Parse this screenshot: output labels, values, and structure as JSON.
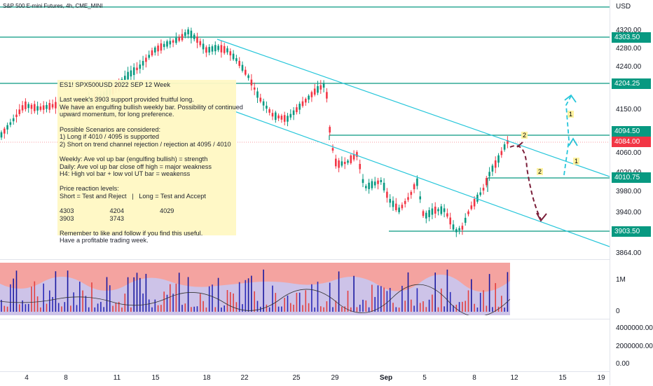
{
  "chart_title": "S&P 500 E-mini Futures, 4h, CME_MINI",
  "currency": "USD",
  "price_labels": [
    "4320.00",
    "4280.00",
    "4240.00",
    "4150.00",
    "4060.00",
    "4020.00",
    "3980.00",
    "3940.00",
    "3864.00"
  ],
  "tags": [
    {
      "text": "4303.50",
      "color": "#089981"
    },
    {
      "text": "4204.25",
      "color": "#089981"
    },
    {
      "text": "4094.50",
      "color": "#089981"
    },
    {
      "text": "4084.00",
      "color": "#f23645"
    },
    {
      "text": "4010.75",
      "color": "#089981"
    },
    {
      "text": "3903.50",
      "color": "#089981"
    }
  ],
  "volume_labels": [
    "1M",
    "0"
  ],
  "indicator_labels": [
    "4000000.00",
    "2000000.00",
    "0.00"
  ],
  "x_labels": [
    "4",
    "8",
    "11",
    "15",
    "18",
    "22",
    "25",
    "29",
    "Sep",
    "5",
    "8",
    "12",
    "15",
    "19"
  ],
  "note_lines": [
    "ES1! SPX500USD 2022 SEP 12 Week",
    "",
    "Last week's 3903 support provided fruitful long.",
    "We have an engulfing bullish weekly bar. Possibility of continued",
    "upward momentum, for long preference.",
    "",
    "Possible Scenarios are considered:",
    "1) Long if 4010 / 4095 is supported",
    "2) Short on trend channel rejection / rejection at 4095 / 4010",
    "",
    "Weekly: Ave vol up bar (engulfing bullish) = strength",
    "Daily: Ave vol up bar close off high = major weakness",
    "H4: High vol bar + low vol UT bar = weakenss",
    "",
    "Price reaction levels:",
    "Short = Test and Reject   |   Long = Test and Accept",
    "",
    "4303                    4204                    4029",
    "3903                    3743",
    "",
    "Remember to like and follow if you find this useful.",
    "Have a profitable trading week."
  ],
  "markers": [
    "2",
    "2",
    "1",
    "1"
  ],
  "colors": {
    "up": "#089981",
    "down": "#f23645",
    "level": "#089981",
    "channel": "#26c6da",
    "vol_panel": "#f4a3a0",
    "note_bg": "#fff8c4"
  }
}
